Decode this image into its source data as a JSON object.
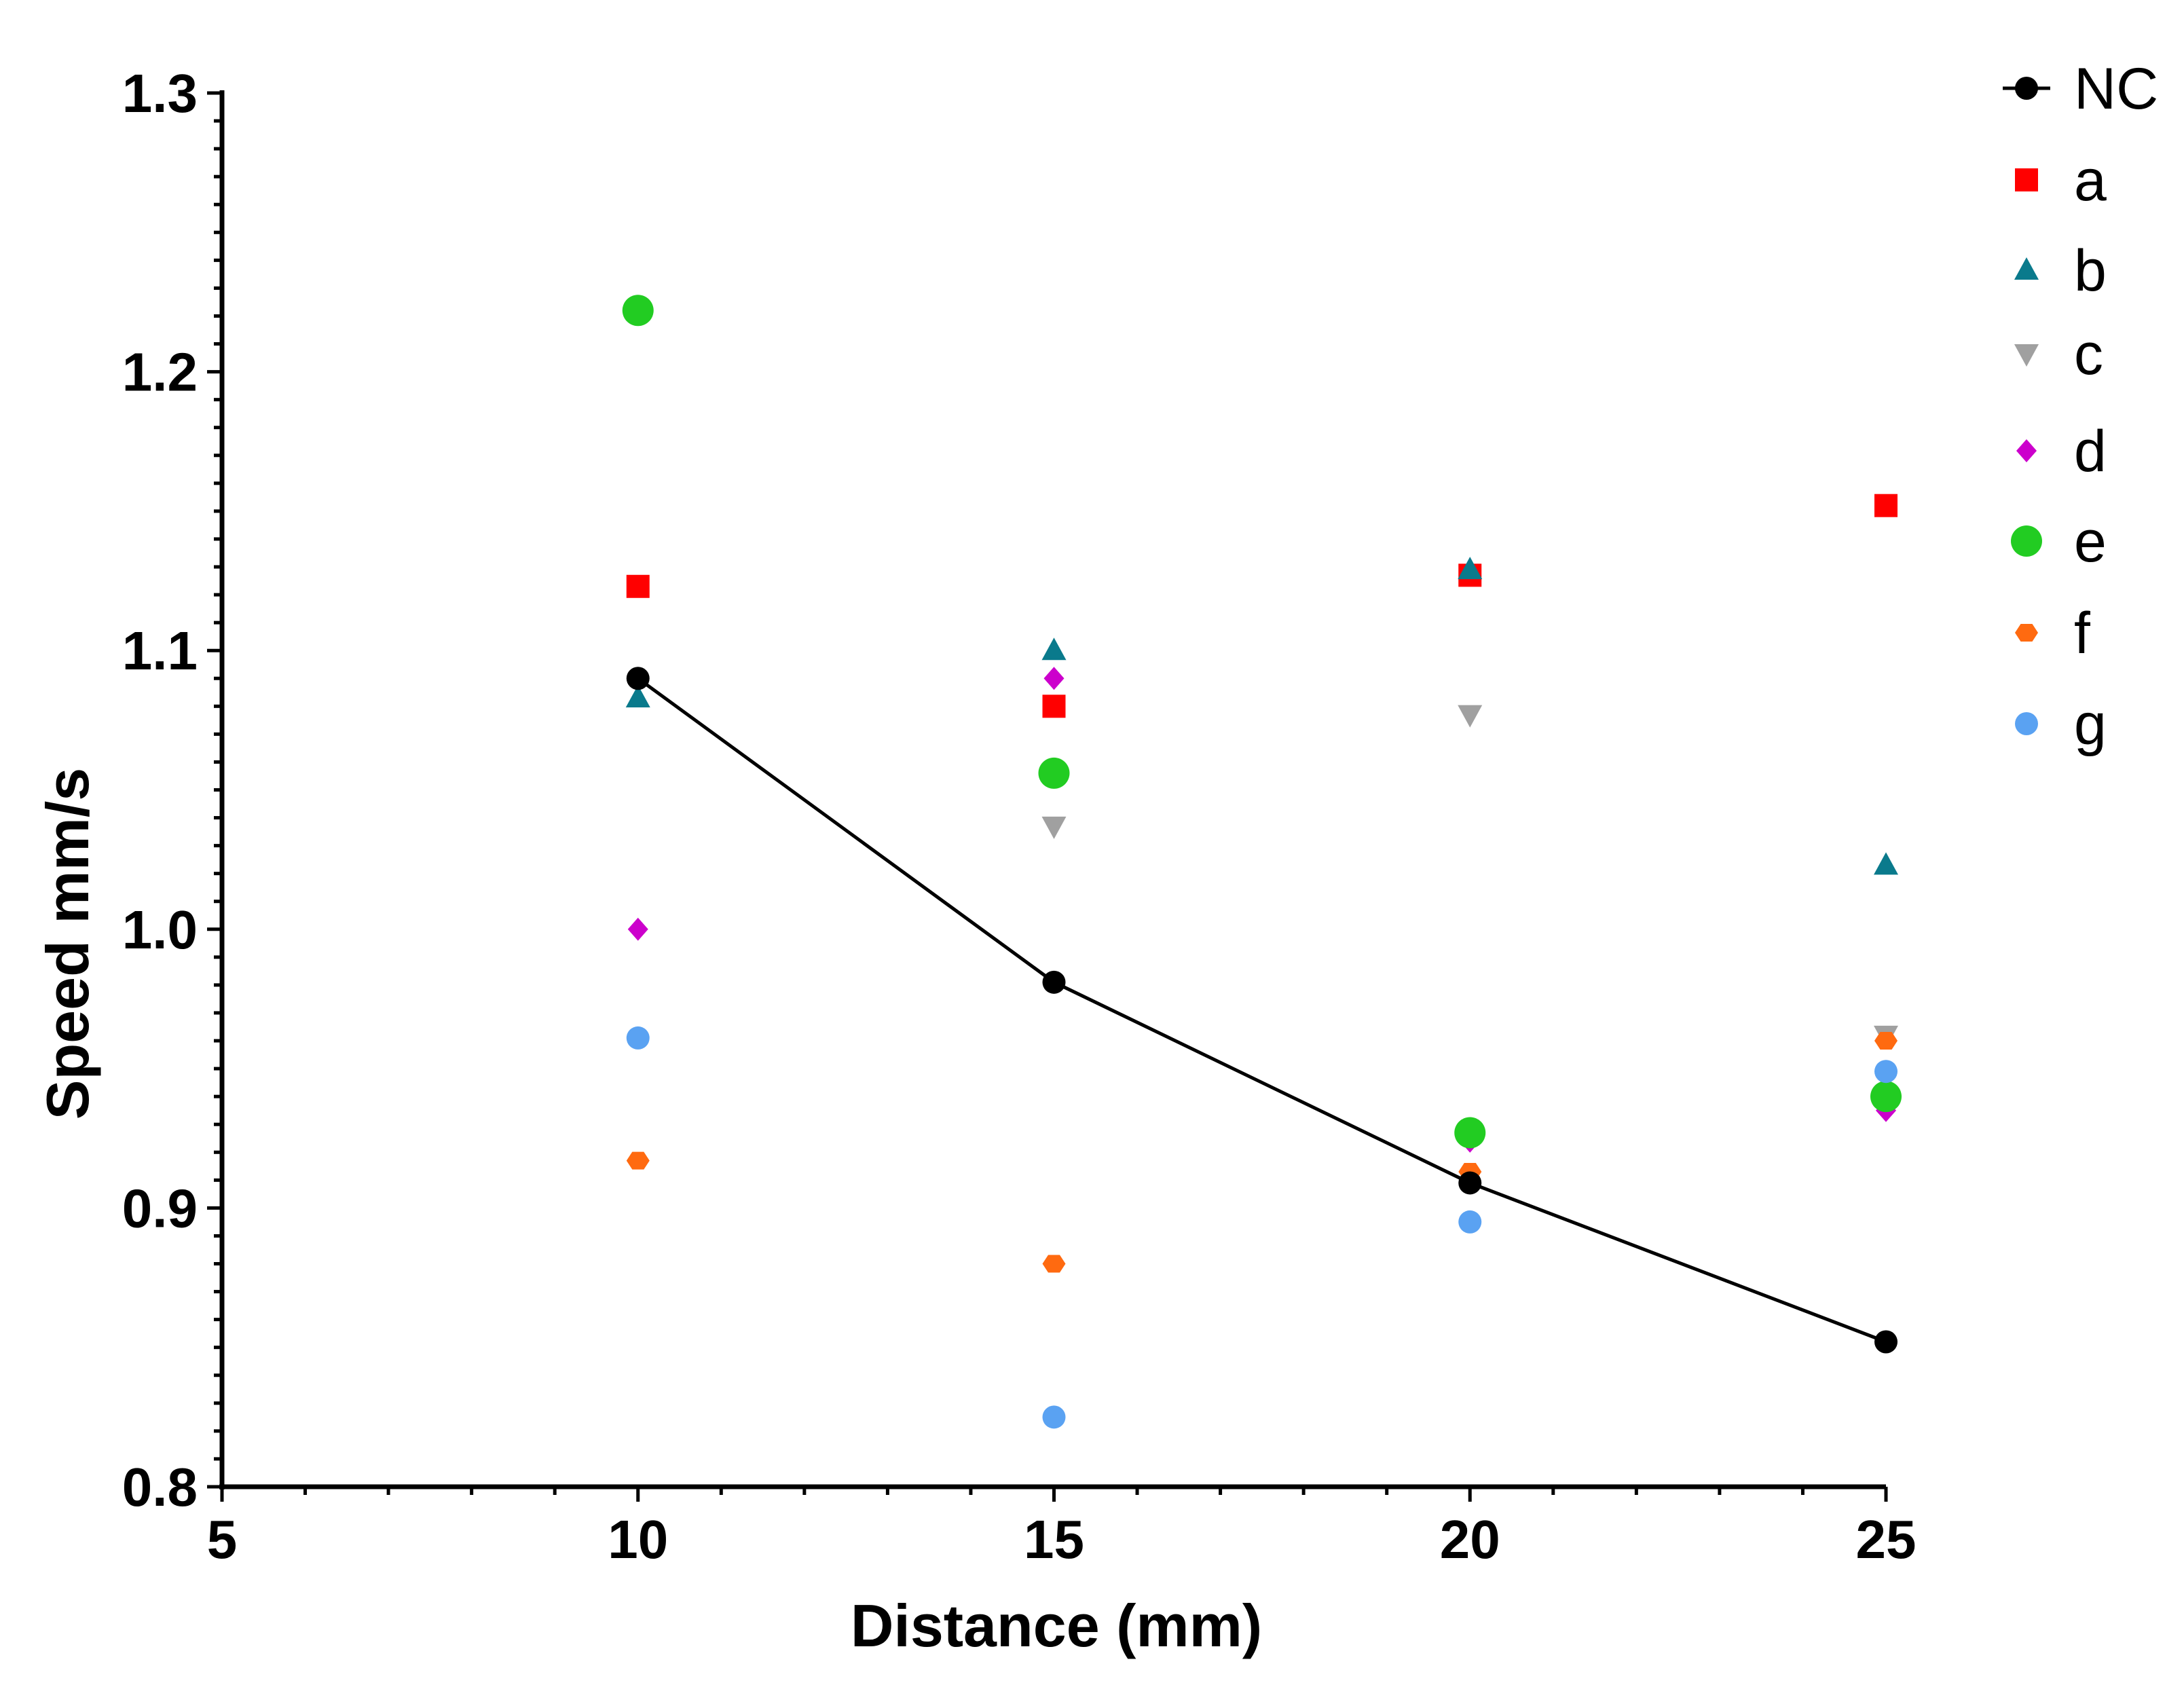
{
  "chart_data": {
    "type": "scatter",
    "title": "",
    "xlabel": "Distance (mm)",
    "ylabel": "Speed mm/s",
    "xlim": [
      5,
      25
    ],
    "ylim": [
      0.8,
      1.3
    ],
    "x_ticks": [
      "5",
      "10",
      "15",
      "20",
      "25"
    ],
    "y_ticks": [
      "0.8",
      "0.9",
      "1.0",
      "1.1",
      "1.2",
      "1.3"
    ],
    "legend_position": "top-right",
    "x": [
      10,
      15,
      20,
      25
    ],
    "series": [
      {
        "name": "NC",
        "values": [
          1.09,
          0.981,
          0.909,
          0.852
        ],
        "color": "#000000",
        "marker": "circle",
        "line": true
      },
      {
        "name": "a",
        "values": [
          1.123,
          1.08,
          1.127,
          1.152
        ],
        "color": "#ff0000",
        "marker": "square",
        "line": false
      },
      {
        "name": "b",
        "values": [
          1.083,
          1.1,
          1.129,
          1.023
        ],
        "color": "#0a7a8c",
        "marker": "triangle-up",
        "line": false
      },
      {
        "name": "c",
        "values": [
          null,
          1.037,
          1.077,
          0.962
        ],
        "color": "#a0a0a0",
        "marker": "triangle-down",
        "line": false
      },
      {
        "name": "d",
        "values": [
          1.0,
          1.09,
          0.924,
          0.935
        ],
        "color": "#cc00cc",
        "marker": "diamond",
        "line": false
      },
      {
        "name": "e",
        "values": [
          1.222,
          1.056,
          0.927,
          0.94
        ],
        "color": "#22cc22",
        "marker": "circle-large",
        "line": false
      },
      {
        "name": "f",
        "values": [
          0.917,
          0.88,
          0.913,
          0.96
        ],
        "color": "#ff6a10",
        "marker": "hexagon",
        "line": false
      },
      {
        "name": "g",
        "values": [
          0.961,
          0.825,
          0.895,
          0.949
        ],
        "color": "#5aa2f2",
        "marker": "circle",
        "line": false
      }
    ]
  }
}
